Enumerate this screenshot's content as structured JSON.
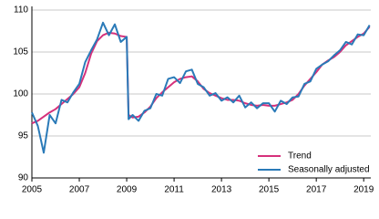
{
  "chart_data": {
    "type": "line",
    "x": [
      2005,
      2005.25,
      2005.5,
      2005.75,
      2006,
      2006.25,
      2006.5,
      2006.75,
      2007,
      2007.25,
      2007.5,
      2007.75,
      2008,
      2008.25,
      2008.5,
      2008.75,
      2009,
      2009.08,
      2009.25,
      2009.5,
      2009.75,
      2010,
      2010.25,
      2010.5,
      2010.75,
      2011,
      2011.25,
      2011.5,
      2011.75,
      2012,
      2012.25,
      2012.5,
      2012.75,
      2013,
      2013.25,
      2013.5,
      2013.75,
      2014,
      2014.25,
      2014.5,
      2014.75,
      2015,
      2015.25,
      2015.5,
      2015.75,
      2016,
      2016.25,
      2016.5,
      2016.75,
      2017,
      2017.25,
      2017.5,
      2017.75,
      2018,
      2018.25,
      2018.5,
      2018.75,
      2019,
      2019.25
    ],
    "series": [
      {
        "name": "Trend",
        "color": "#d6317b",
        "values": [
          96.5,
          96.8,
          97.3,
          97.8,
          98.2,
          98.8,
          99.4,
          100.0,
          100.8,
          102.5,
          104.8,
          106.3,
          107.0,
          107.3,
          107.2,
          106.9,
          106.8,
          97.5,
          97.2,
          97.3,
          97.8,
          98.5,
          99.5,
          100.2,
          100.8,
          101.4,
          101.8,
          102.0,
          102.1,
          101.5,
          100.6,
          100.1,
          99.8,
          99.5,
          99.3,
          99.3,
          99.2,
          98.9,
          98.7,
          98.6,
          98.7,
          98.6,
          98.6,
          98.8,
          99.0,
          99.3,
          100.0,
          101.0,
          101.8,
          102.6,
          103.5,
          104.0,
          104.4,
          105.0,
          105.8,
          106.3,
          106.8,
          107.2,
          108.0
        ]
      },
      {
        "name": "Seasonally adjusted",
        "color": "#2a7ab8",
        "values": [
          97.8,
          96.2,
          93.0,
          97.5,
          96.5,
          99.3,
          99.0,
          100.2,
          101.2,
          103.8,
          105.2,
          106.5,
          108.5,
          107.0,
          108.3,
          106.2,
          106.8,
          97.0,
          97.5,
          96.8,
          98.0,
          98.3,
          100.0,
          99.8,
          101.8,
          102.0,
          101.3,
          102.7,
          102.9,
          101.2,
          100.8,
          99.8,
          100.1,
          99.2,
          99.6,
          99.0,
          99.8,
          98.4,
          99.0,
          98.3,
          98.9,
          98.9,
          97.9,
          99.2,
          98.8,
          99.6,
          99.7,
          101.2,
          101.5,
          103.0,
          103.5,
          103.9,
          104.6,
          105.2,
          106.2,
          105.9,
          107.1,
          107.0,
          108.2
        ]
      }
    ],
    "xlim": [
      2005,
      2019.3
    ],
    "xticks": [
      2005,
      2007,
      2009,
      2011,
      2013,
      2015,
      2017,
      2019
    ],
    "ylim": [
      90,
      110
    ],
    "yticks": [
      90,
      95,
      100,
      105,
      110
    ],
    "grid": true,
    "legend": "lower right"
  }
}
